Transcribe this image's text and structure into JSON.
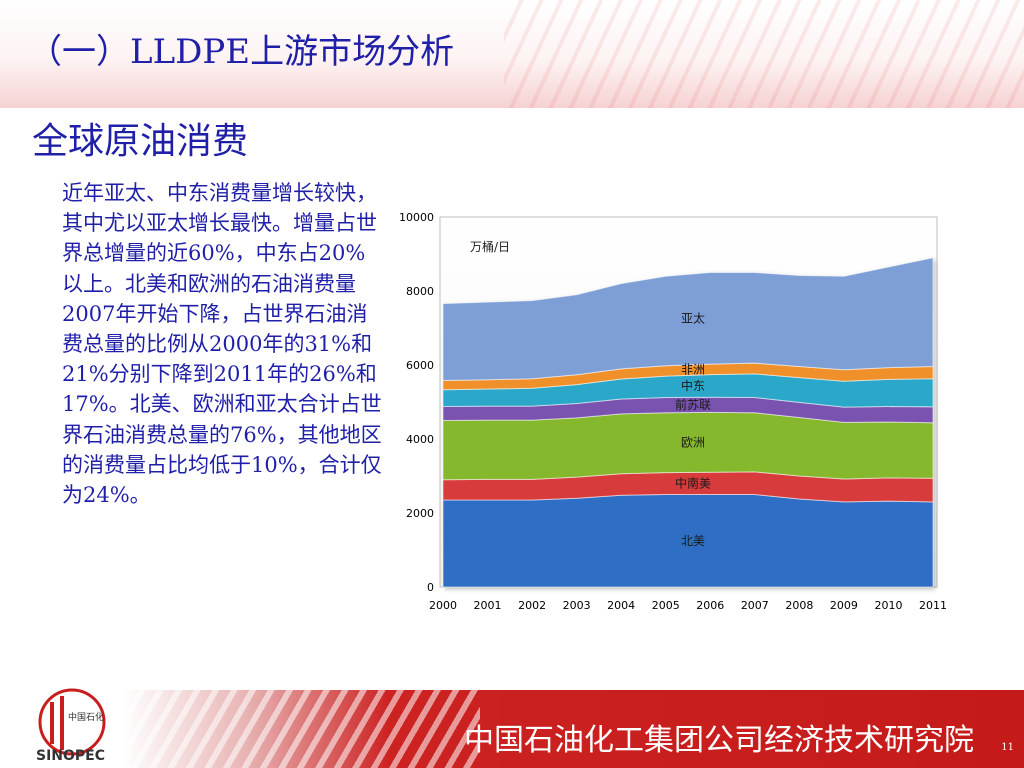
{
  "header": {
    "title": "（一）LLDPE上游市场分析"
  },
  "section": {
    "subtitle": "全球原油消费"
  },
  "body": {
    "paragraph": "近年亚太、中东消费量增长较快，其中尤以亚太增长最快。增量占世界总增量的近60%，中东占20%以上。北美和欧洲的石油消费量2007年开始下降，占世界石油消费总量的比例从2000年的31%和21%分别下降到2011年的26%和17%。北美、欧洲和亚太合计占世界石油消费总量的76%，其他地区的消费量占比均低于10%，合计仅为24%。"
  },
  "footer": {
    "org_name": "中国石油化工集团公司经济技术研究院",
    "page_number": "11"
  },
  "logo": {
    "icon": "sinopec-logo",
    "text": "中国石化"
  },
  "chart_data": {
    "type": "area",
    "stacked": true,
    "unit_label": "万桶/日",
    "x": [
      "2000",
      "2001",
      "2002",
      "2003",
      "2004",
      "2005",
      "2006",
      "2007",
      "2008",
      "2009",
      "2010",
      "2011"
    ],
    "ylim": [
      0,
      10000
    ],
    "yticks": [
      0,
      2000,
      4000,
      6000,
      8000,
      10000
    ],
    "series": [
      {
        "name": "北美",
        "color": "#2e6ec4",
        "values": [
          2350,
          2350,
          2350,
          2400,
          2480,
          2500,
          2500,
          2500,
          2380,
          2300,
          2320,
          2300
        ]
      },
      {
        "name": "中南美",
        "color": "#d83a3a",
        "values": [
          550,
          560,
          560,
          570,
          580,
          590,
          600,
          610,
          620,
          620,
          630,
          640
        ]
      },
      {
        "name": "欧洲",
        "color": "#86b82e",
        "values": [
          1600,
          1600,
          1600,
          1600,
          1620,
          1620,
          1620,
          1600,
          1580,
          1530,
          1510,
          1500
        ]
      },
      {
        "name": "前苏联",
        "color": "#7a52b0",
        "values": [
          380,
          380,
          380,
          390,
          400,
          410,
          410,
          410,
          410,
          410,
          420,
          430
        ]
      },
      {
        "name": "中东",
        "color": "#2aa7c9",
        "values": [
          450,
          460,
          480,
          510,
          540,
          580,
          610,
          640,
          670,
          700,
          730,
          760
        ]
      },
      {
        "name": "非洲",
        "color": "#f0902a",
        "values": [
          250,
          250,
          260,
          265,
          275,
          280,
          285,
          290,
          300,
          310,
          320,
          330
        ]
      },
      {
        "name": "亚太",
        "color": "#7e9fd6",
        "values": [
          2080,
          2100,
          2110,
          2165,
          2305,
          2420,
          2475,
          2450,
          2460,
          2530,
          2720,
          2940
        ]
      }
    ]
  }
}
